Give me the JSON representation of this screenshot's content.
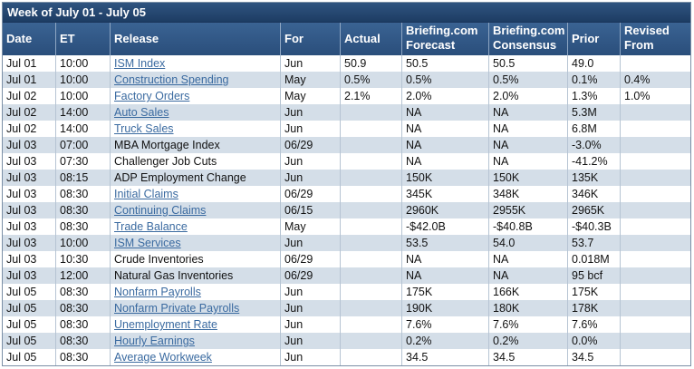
{
  "title": "Week of July 01 - July 05",
  "headers": {
    "date": "Date",
    "et": "ET",
    "release": "Release",
    "for": "For",
    "actual": "Actual",
    "forecast_line1": "Briefing.com",
    "forecast_line2": "Forecast",
    "consensus_line1": "Briefing.com",
    "consensus_line2": "Consensus",
    "prior": "Prior",
    "revised_line1": "Revised",
    "revised_line2": "From"
  },
  "rows": [
    {
      "date": "Jul 01",
      "et": "10:00",
      "release": "ISM Index",
      "link": true,
      "for": "Jun",
      "actual": "50.9",
      "forecast": "50.5",
      "consensus": "50.5",
      "prior": "49.0",
      "revised": ""
    },
    {
      "date": "Jul 01",
      "et": "10:00",
      "release": "Construction Spending",
      "link": true,
      "for": "May",
      "actual": "0.5%",
      "forecast": "0.5%",
      "consensus": "0.5%",
      "prior": "0.1%",
      "revised": "0.4%"
    },
    {
      "date": "Jul 02",
      "et": "10:00",
      "release": "Factory Orders",
      "link": true,
      "for": "May",
      "actual": "2.1%",
      "forecast": "2.0%",
      "consensus": "2.0%",
      "prior": "1.3%",
      "revised": "1.0%"
    },
    {
      "date": "Jul 02",
      "et": "14:00",
      "release": "Auto Sales",
      "link": true,
      "for": "Jun",
      "actual": "",
      "forecast": "NA",
      "consensus": "NA",
      "prior": "5.3M",
      "revised": ""
    },
    {
      "date": "Jul 02",
      "et": "14:00",
      "release": "Truck Sales",
      "link": true,
      "for": "Jun",
      "actual": "",
      "forecast": "NA",
      "consensus": "NA",
      "prior": "6.8M",
      "revised": ""
    },
    {
      "date": "Jul 03",
      "et": "07:00",
      "release": "MBA Mortgage Index",
      "link": false,
      "for": "06/29",
      "actual": "",
      "forecast": "NA",
      "consensus": "NA",
      "prior": "-3.0%",
      "revised": ""
    },
    {
      "date": "Jul 03",
      "et": "07:30",
      "release": "Challenger Job Cuts",
      "link": false,
      "for": "Jun",
      "actual": "",
      "forecast": "NA",
      "consensus": "NA",
      "prior": "-41.2%",
      "revised": ""
    },
    {
      "date": "Jul 03",
      "et": "08:15",
      "release": "ADP Employment Change",
      "link": false,
      "for": "Jun",
      "actual": "",
      "forecast": "150K",
      "consensus": "150K",
      "prior": "135K",
      "revised": ""
    },
    {
      "date": "Jul 03",
      "et": "08:30",
      "release": "Initial Claims",
      "link": true,
      "for": "06/29",
      "actual": "",
      "forecast": "345K",
      "consensus": "348K",
      "prior": "346K",
      "revised": ""
    },
    {
      "date": "Jul 03",
      "et": "08:30",
      "release": "Continuing Claims",
      "link": true,
      "for": "06/15",
      "actual": "",
      "forecast": "2960K",
      "consensus": "2955K",
      "prior": "2965K",
      "revised": ""
    },
    {
      "date": "Jul 03",
      "et": "08:30",
      "release": "Trade Balance",
      "link": true,
      "for": "May",
      "actual": "",
      "forecast": "-$42.0B",
      "consensus": "-$40.8B",
      "prior": "-$40.3B",
      "revised": ""
    },
    {
      "date": "Jul 03",
      "et": "10:00",
      "release": "ISM Services",
      "link": true,
      "for": "Jun",
      "actual": "",
      "forecast": "53.5",
      "consensus": "54.0",
      "prior": "53.7",
      "revised": ""
    },
    {
      "date": "Jul 03",
      "et": "10:30",
      "release": "Crude Inventories",
      "link": false,
      "for": "06/29",
      "actual": "",
      "forecast": "NA",
      "consensus": "NA",
      "prior": "0.018M",
      "revised": ""
    },
    {
      "date": "Jul 03",
      "et": "12:00",
      "release": "Natural Gas Inventories",
      "link": false,
      "for": "06/29",
      "actual": "",
      "forecast": "NA",
      "consensus": "NA",
      "prior": "95 bcf",
      "revised": ""
    },
    {
      "date": "Jul 05",
      "et": "08:30",
      "release": "Nonfarm Payrolls",
      "link": true,
      "for": "Jun",
      "actual": "",
      "forecast": "175K",
      "consensus": "166K",
      "prior": "175K",
      "revised": ""
    },
    {
      "date": "Jul 05",
      "et": "08:30",
      "release": "Nonfarm Private Payrolls",
      "link": true,
      "for": "Jun",
      "actual": "",
      "forecast": "190K",
      "consensus": "180K",
      "prior": "178K",
      "revised": ""
    },
    {
      "date": "Jul 05",
      "et": "08:30",
      "release": "Unemployment Rate",
      "link": true,
      "for": "Jun",
      "actual": "",
      "forecast": "7.6%",
      "consensus": "7.6%",
      "prior": "7.6%",
      "revised": ""
    },
    {
      "date": "Jul 05",
      "et": "08:30",
      "release": "Hourly Earnings",
      "link": true,
      "for": "Jun",
      "actual": "",
      "forecast": "0.2%",
      "consensus": "0.2%",
      "prior": "0.0%",
      "revised": ""
    },
    {
      "date": "Jul 05",
      "et": "08:30",
      "release": "Average Workweek",
      "link": true,
      "for": "Jun",
      "actual": "",
      "forecast": "34.5",
      "consensus": "34.5",
      "prior": "34.5",
      "revised": ""
    }
  ]
}
